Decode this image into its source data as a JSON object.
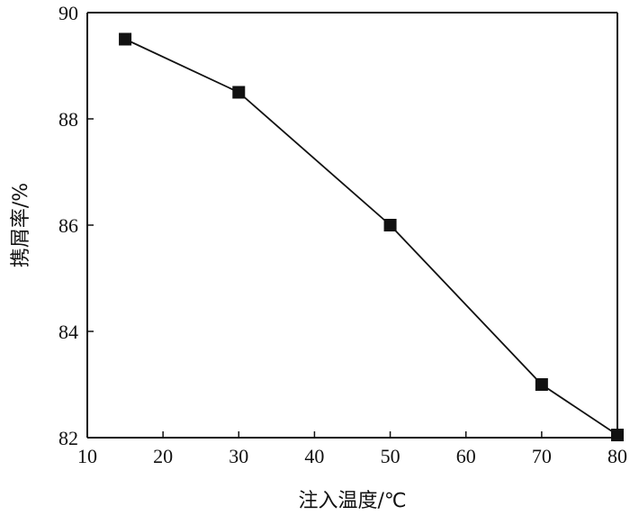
{
  "chart_data": {
    "type": "line",
    "title": "",
    "xlabel": "注入温度/℃",
    "ylabel": "携屑率/%",
    "xlim": [
      10,
      80
    ],
    "ylim": [
      82,
      90
    ],
    "xticks": [
      10,
      20,
      30,
      40,
      50,
      60,
      70,
      80
    ],
    "yticks": [
      82,
      84,
      86,
      88,
      90
    ],
    "grid": false,
    "legend": "none",
    "series": [
      {
        "x": [
          15,
          30,
          50,
          70,
          80
        ],
        "y": [
          89.5,
          88.5,
          86.0,
          83.0,
          82.05
        ],
        "marker": "square",
        "color": "#111111"
      }
    ]
  }
}
